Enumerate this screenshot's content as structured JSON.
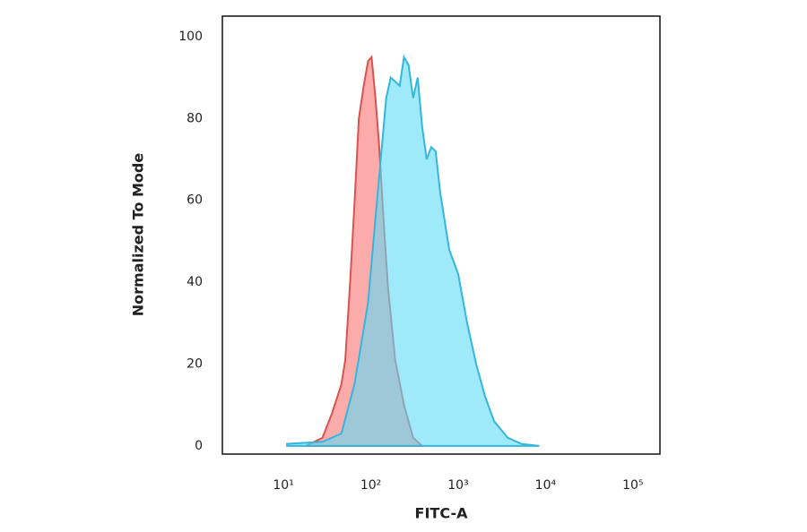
{
  "chart_data": {
    "type": "histogram-overlay",
    "x_label": "FITC-A",
    "y_label": "Normalized To Mode",
    "xscale": "log",
    "xlim": [
      2,
      204000
    ],
    "ylim": [
      -2,
      105
    ],
    "xticks": [
      {
        "value": 10,
        "label": "10¹"
      },
      {
        "value": 100,
        "label": "10²"
      },
      {
        "value": 1000,
        "label": "10³"
      },
      {
        "value": 10000,
        "label": "10⁴"
      },
      {
        "value": 100000,
        "label": "10⁵"
      }
    ],
    "yticks": [
      0,
      20,
      40,
      60,
      80,
      100
    ],
    "series": [
      {
        "color": "#d9534f",
        "fill": "#fb8f8f",
        "x": [
          18,
          28,
          36,
          46,
          51,
          58,
          65,
          73,
          83,
          93,
          102,
          113,
          124,
          143,
          157,
          190,
          240,
          305,
          387
        ],
        "values": [
          0,
          2,
          8,
          15,
          21,
          40,
          59,
          80,
          88,
          94,
          95,
          85,
          74,
          52,
          39,
          21,
          10,
          2,
          0
        ]
      },
      {
        "color": "#35b6dd",
        "fill": "#5fdcf7",
        "x": [
          11,
          28,
          46,
          65,
          93,
          118,
          150,
          169,
          214,
          240,
          271,
          305,
          344,
          387,
          436,
          491,
          552,
          622,
          789,
          1000,
          1268,
          1607,
          2037,
          2583,
          3690,
          5270,
          8470
        ],
        "values": [
          0.5,
          1,
          3,
          15,
          35,
          60,
          85,
          90,
          88,
          95,
          93,
          85,
          90,
          78,
          70,
          73,
          72,
          62,
          48,
          42,
          30,
          20,
          12,
          6,
          2,
          0.5,
          0
        ]
      }
    ]
  }
}
